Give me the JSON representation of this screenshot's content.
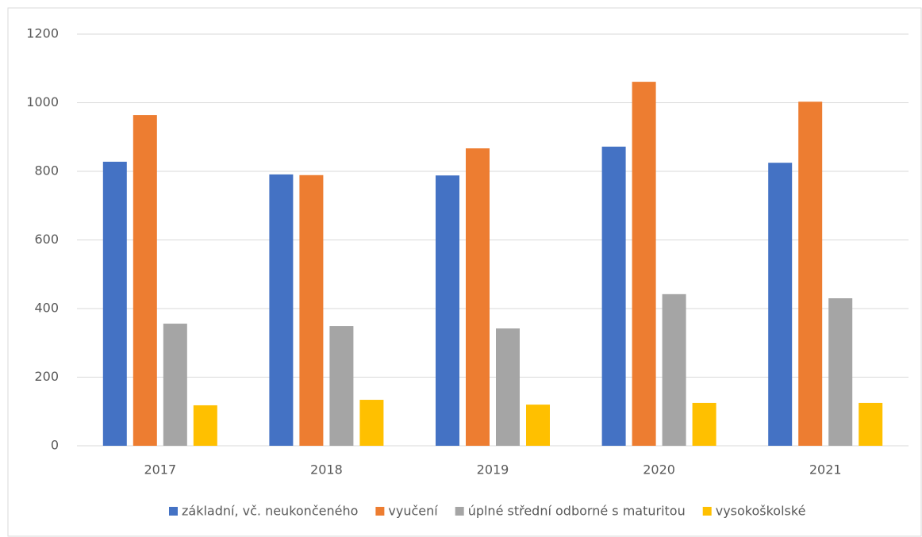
{
  "chart_data": {
    "type": "bar",
    "categories": [
      "2017",
      "2018",
      "2019",
      "2020",
      "2021"
    ],
    "series": [
      {
        "name": "základní, vč. neukončeného",
        "color": "#4472c4",
        "values": [
          828,
          791,
          788,
          872,
          825
        ]
      },
      {
        "name": "vyučení",
        "color": "#ed7d31",
        "values": [
          964,
          789,
          867,
          1061,
          1003
        ]
      },
      {
        "name": "úplné střední odborné s maturitou",
        "color": "#a5a5a5",
        "values": [
          356,
          349,
          342,
          442,
          430
        ]
      },
      {
        "name": "vysokoškolské",
        "color": "#ffc000",
        "values": [
          118,
          134,
          120,
          125,
          125
        ]
      }
    ],
    "ylim": [
      0,
      1200
    ],
    "yticks": [
      0,
      200,
      400,
      600,
      800,
      1000,
      1200
    ],
    "grid": true,
    "legend": "bottom"
  }
}
